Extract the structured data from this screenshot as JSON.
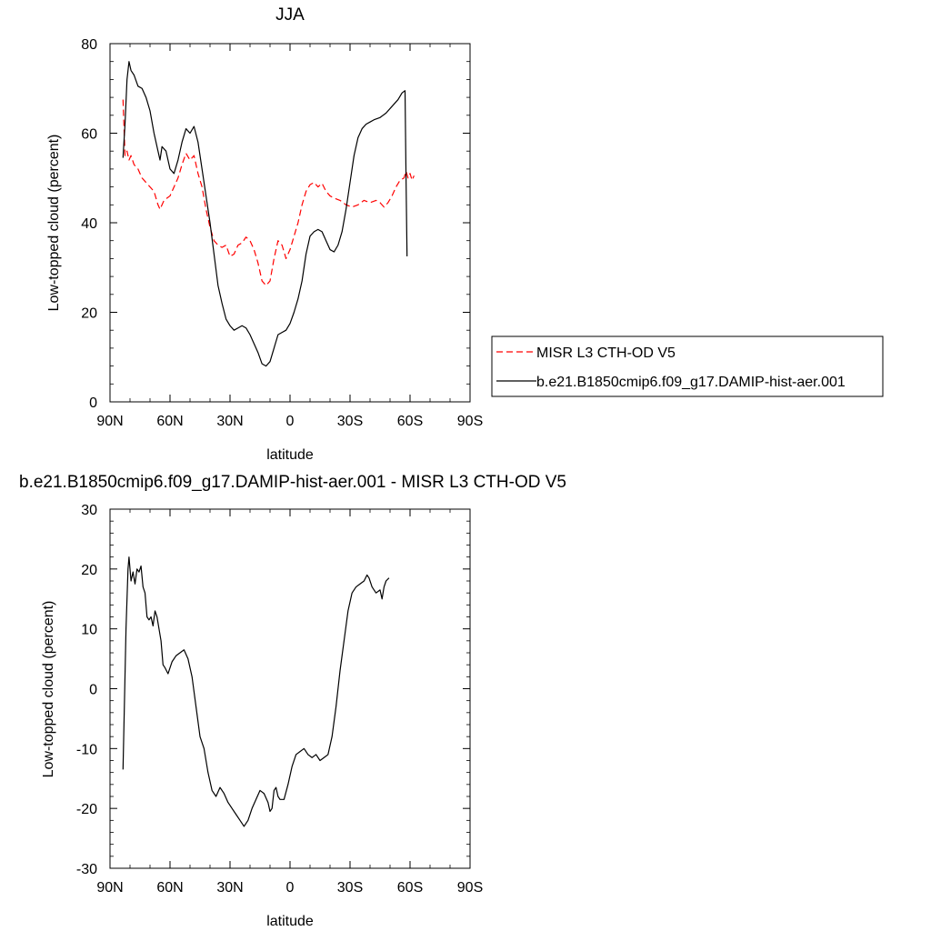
{
  "figure": {
    "top_title": "JJA",
    "bottom_title": "b.e21.B1850cmip6.f09_g17.DAMIP-hist-aer.001 - MISR L3 CTH-OD V5"
  },
  "legend": {
    "items": [
      {
        "label": "MISR L3 CTH-OD V5",
        "color": "#ff0000",
        "dash": "dashed"
      },
      {
        "label": "b.e21.B1850cmip6.f09_g17.DAMIP-hist-aer.001",
        "color": "#000000",
        "dash": "solid"
      }
    ]
  },
  "chart_data": [
    {
      "type": "line",
      "title": "JJA",
      "xlabel": "latitude",
      "ylabel": "Low-topped cloud (percent)",
      "x_tick_labels": [
        "90N",
        "60N",
        "30N",
        "0",
        "30S",
        "60S",
        "90S"
      ],
      "x_tick_values": [
        90,
        60,
        30,
        0,
        -30,
        -60,
        -90
      ],
      "xlim": [
        90,
        -90
      ],
      "ylim": [
        0,
        80
      ],
      "y_ticks": [
        0,
        20,
        40,
        60,
        80
      ],
      "y_tick_labels": [
        "0",
        "20",
        "40",
        "60",
        "80"
      ],
      "series": [
        {
          "name": "MISR L3 CTH-OD V5",
          "color": "#ff0000",
          "dash": "dashed",
          "points": [
            [
              83.5,
              67.5
            ],
            [
              82.5,
              55
            ],
            [
              81.5,
              56
            ],
            [
              80.5,
              54
            ],
            [
              79.5,
              55
            ],
            [
              78,
              53
            ],
            [
              76,
              52
            ],
            [
              74,
              50
            ],
            [
              72,
              49
            ],
            [
              70,
              48
            ],
            [
              68,
              47
            ],
            [
              66,
              44
            ],
            [
              65,
              43
            ],
            [
              63,
              45
            ],
            [
              60,
              46
            ],
            [
              58,
              48
            ],
            [
              56,
              50
            ],
            [
              54,
              53
            ],
            [
              52,
              55.5
            ],
            [
              50,
              54
            ],
            [
              48,
              55
            ],
            [
              46,
              51
            ],
            [
              44,
              48
            ],
            [
              42,
              43
            ],
            [
              40,
              39
            ],
            [
              38,
              36
            ],
            [
              36,
              35
            ],
            [
              34,
              34.5
            ],
            [
              32,
              35
            ],
            [
              30,
              32.5
            ],
            [
              28,
              33
            ],
            [
              26,
              35
            ],
            [
              24,
              35.5
            ],
            [
              22,
              36.8
            ],
            [
              20,
              36
            ],
            [
              18,
              34
            ],
            [
              16,
              31
            ],
            [
              14,
              27
            ],
            [
              12,
              26
            ],
            [
              10,
              27
            ],
            [
              8,
              32
            ],
            [
              6,
              36
            ],
            [
              4,
              35
            ],
            [
              2,
              32
            ],
            [
              0,
              34
            ],
            [
              -2,
              37
            ],
            [
              -4,
              40
            ],
            [
              -6,
              44
            ],
            [
              -8,
              47
            ],
            [
              -10,
              48.5
            ],
            [
              -12,
              49
            ],
            [
              -14,
              48
            ],
            [
              -16,
              48.8
            ],
            [
              -18,
              47
            ],
            [
              -20,
              46
            ],
            [
              -22,
              45.5
            ],
            [
              -25,
              45
            ],
            [
              -28,
              44
            ],
            [
              -31,
              43.5
            ],
            [
              -34,
              44
            ],
            [
              -37,
              45
            ],
            [
              -40,
              44.5
            ],
            [
              -43,
              45
            ],
            [
              -45,
              44.5
            ],
            [
              -47,
              43.5
            ],
            [
              -49,
              44.5
            ],
            [
              -51,
              46
            ],
            [
              -53,
              48
            ],
            [
              -55,
              49.5
            ],
            [
              -57,
              50
            ],
            [
              -58,
              51.5
            ],
            [
              -59,
              50
            ],
            [
              -60,
              51
            ],
            [
              -61,
              49.5
            ],
            [
              -62,
              50.5
            ]
          ]
        },
        {
          "name": "b.e21.B1850cmip6.f09_g17.DAMIP-hist-aer.001",
          "color": "#000000",
          "dash": "solid",
          "points": [
            [
              83.5,
              54.5
            ],
            [
              82.5,
              62
            ],
            [
              81.5,
              72
            ],
            [
              80.5,
              76
            ],
            [
              79.5,
              74
            ],
            [
              78,
              73
            ],
            [
              76,
              70.5
            ],
            [
              74,
              70
            ],
            [
              72,
              68
            ],
            [
              70,
              65
            ],
            [
              68,
              60
            ],
            [
              66,
              56
            ],
            [
              65,
              54
            ],
            [
              64,
              57
            ],
            [
              62,
              56
            ],
            [
              60,
              52
            ],
            [
              58,
              51
            ],
            [
              56,
              54
            ],
            [
              54,
              58
            ],
            [
              52,
              61
            ],
            [
              50,
              60
            ],
            [
              48,
              61.5
            ],
            [
              46,
              58
            ],
            [
              44,
              52
            ],
            [
              42,
              46
            ],
            [
              40,
              40
            ],
            [
              38,
              33
            ],
            [
              36,
              26
            ],
            [
              34,
              22
            ],
            [
              32,
              18.5
            ],
            [
              30,
              17
            ],
            [
              28,
              16
            ],
            [
              26,
              16.5
            ],
            [
              24,
              17
            ],
            [
              22,
              16.5
            ],
            [
              20,
              15
            ],
            [
              18,
              13
            ],
            [
              16,
              11
            ],
            [
              14,
              8.5
            ],
            [
              12,
              8
            ],
            [
              10,
              9
            ],
            [
              8,
              12
            ],
            [
              6,
              15
            ],
            [
              4,
              15.5
            ],
            [
              2,
              16
            ],
            [
              0,
              17.5
            ],
            [
              -2,
              20
            ],
            [
              -4,
              23
            ],
            [
              -6,
              27
            ],
            [
              -8,
              33
            ],
            [
              -10,
              37
            ],
            [
              -12,
              38
            ],
            [
              -14,
              38.5
            ],
            [
              -16,
              38
            ],
            [
              -18,
              36
            ],
            [
              -20,
              34
            ],
            [
              -22,
              33.5
            ],
            [
              -24,
              35
            ],
            [
              -26,
              38
            ],
            [
              -28,
              43
            ],
            [
              -30,
              49
            ],
            [
              -32,
              55
            ],
            [
              -34,
              59
            ],
            [
              -36,
              61
            ],
            [
              -38,
              62
            ],
            [
              -40,
              62.5
            ],
            [
              -42,
              63
            ],
            [
              -45,
              63.5
            ],
            [
              -48,
              64.5
            ],
            [
              -51,
              66
            ],
            [
              -54,
              67.5
            ],
            [
              -56,
              69
            ],
            [
              -57.5,
              69.5
            ],
            [
              -58,
              50
            ],
            [
              -58.5,
              32.5
            ]
          ]
        }
      ]
    },
    {
      "type": "line",
      "title": "b.e21.B1850cmip6.f09_g17.DAMIP-hist-aer.001 - MISR L3 CTH-OD V5",
      "xlabel": "latitude",
      "ylabel": "Low-topped cloud (percent)",
      "x_tick_labels": [
        "90N",
        "60N",
        "30N",
        "0",
        "30S",
        "60S",
        "90S"
      ],
      "x_tick_values": [
        90,
        60,
        30,
        0,
        -30,
        -60,
        -90
      ],
      "xlim": [
        90,
        -90
      ],
      "ylim": [
        -30,
        30
      ],
      "y_ticks": [
        -30,
        -20,
        -10,
        0,
        10,
        20,
        30
      ],
      "y_tick_labels": [
        "-30",
        "-20",
        "-10",
        "0",
        "10",
        "20",
        "30"
      ],
      "series": [
        {
          "color": "#000000",
          "dash": "solid",
          "points": [
            [
              83.5,
              -13.5
            ],
            [
              82,
              10
            ],
            [
              81,
              20
            ],
            [
              80.5,
              22
            ],
            [
              79.5,
              18
            ],
            [
              78.5,
              19.5
            ],
            [
              77.5,
              17.5
            ],
            [
              76.5,
              20
            ],
            [
              75.5,
              19.5
            ],
            [
              74.5,
              20.5
            ],
            [
              73.5,
              17
            ],
            [
              72.5,
              16
            ],
            [
              71.5,
              12
            ],
            [
              70.5,
              11.5
            ],
            [
              69.5,
              12
            ],
            [
              68.5,
              10.5
            ],
            [
              67.5,
              13
            ],
            [
              66.5,
              12
            ],
            [
              65.5,
              10
            ],
            [
              64.5,
              8
            ],
            [
              63.5,
              4
            ],
            [
              62.5,
              3.5
            ],
            [
              61,
              2.5
            ],
            [
              59,
              4.5
            ],
            [
              57,
              5.5
            ],
            [
              55,
              6
            ],
            [
              53,
              6.5
            ],
            [
              51,
              5
            ],
            [
              49,
              2
            ],
            [
              47,
              -3
            ],
            [
              45,
              -8
            ],
            [
              43,
              -10
            ],
            [
              41,
              -14
            ],
            [
              39,
              -17
            ],
            [
              37,
              -18
            ],
            [
              35,
              -16.5
            ],
            [
              33,
              -17.5
            ],
            [
              31,
              -19
            ],
            [
              29,
              -20
            ],
            [
              27,
              -21
            ],
            [
              25,
              -22
            ],
            [
              23,
              -23
            ],
            [
              21,
              -22
            ],
            [
              19,
              -20
            ],
            [
              17,
              -18.5
            ],
            [
              15,
              -17
            ],
            [
              13,
              -17.5
            ],
            [
              11,
              -19
            ],
            [
              10,
              -20.5
            ],
            [
              9,
              -20
            ],
            [
              8,
              -17
            ],
            [
              7,
              -16.5
            ],
            [
              6,
              -18
            ],
            [
              5,
              -18.5
            ],
            [
              3,
              -18.5
            ],
            [
              1,
              -16
            ],
            [
              -1,
              -13
            ],
            [
              -3,
              -11
            ],
            [
              -5,
              -10.5
            ],
            [
              -7,
              -10
            ],
            [
              -9,
              -11
            ],
            [
              -11,
              -11.5
            ],
            [
              -13,
              -11
            ],
            [
              -15,
              -12
            ],
            [
              -17,
              -11.5
            ],
            [
              -19,
              -11
            ],
            [
              -21,
              -8
            ],
            [
              -23,
              -3
            ],
            [
              -25,
              3
            ],
            [
              -27,
              8
            ],
            [
              -29,
              13
            ],
            [
              -31,
              16
            ],
            [
              -33,
              17
            ],
            [
              -35,
              17.5
            ],
            [
              -37,
              18
            ],
            [
              -38.5,
              19
            ],
            [
              -39.5,
              18.5
            ],
            [
              -41,
              17
            ],
            [
              -43,
              16
            ],
            [
              -45,
              16.5
            ],
            [
              -46,
              15
            ],
            [
              -47,
              17
            ],
            [
              -48,
              18
            ],
            [
              -49.5,
              18.5
            ]
          ]
        }
      ]
    }
  ]
}
